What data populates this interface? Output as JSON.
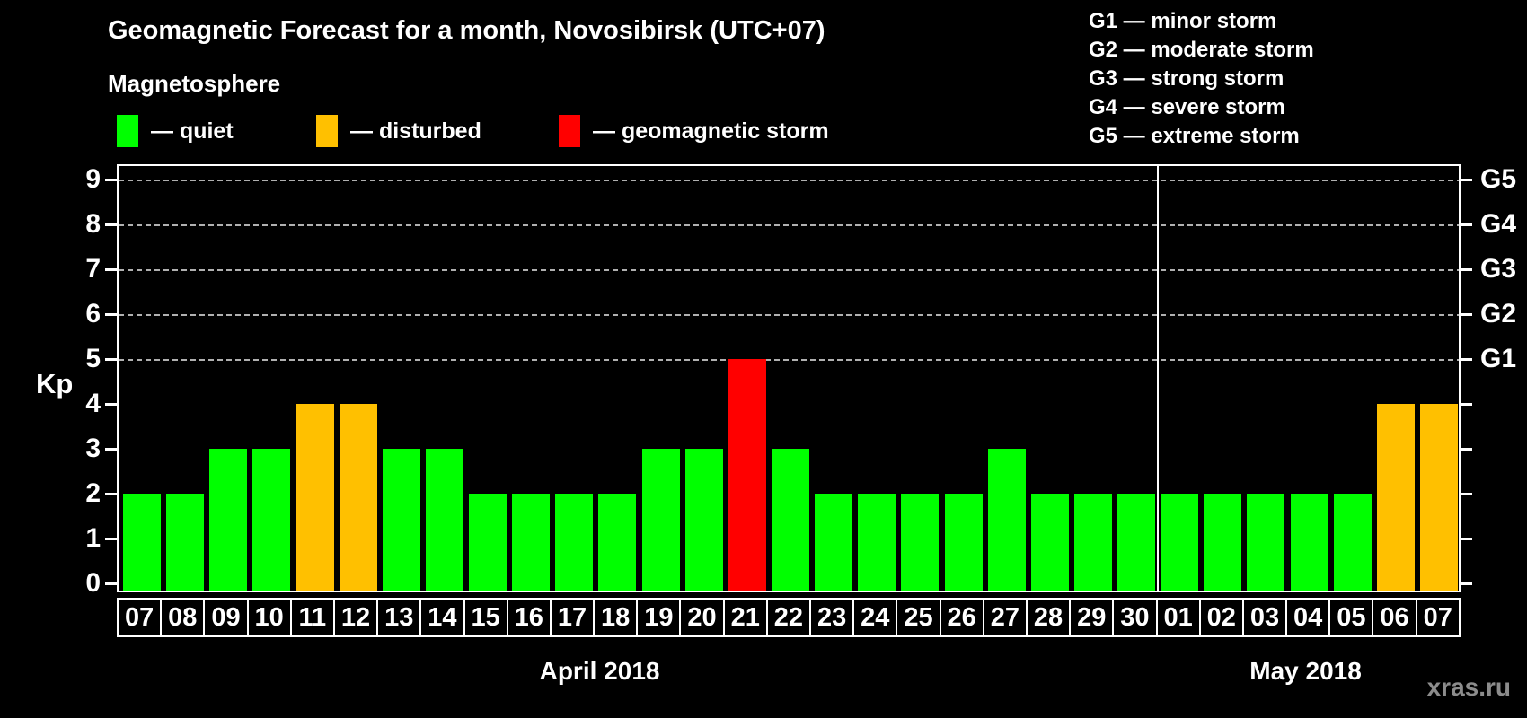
{
  "title": "Geomagnetic Forecast for a month, Novosibirsk (UTC+07)",
  "subtitle": "Magnetosphere",
  "legend": {
    "items": [
      {
        "key": "quiet",
        "label": "— quiet",
        "color": "#00ff00"
      },
      {
        "key": "disturbed",
        "label": "— disturbed",
        "color": "#ffc000"
      },
      {
        "key": "storm",
        "label": "— geomagnetic storm",
        "color": "#ff0000"
      }
    ]
  },
  "g_legend": [
    "G1 — minor storm",
    "G2 — moderate storm",
    "G3 — strong storm",
    "G4 — severe storm",
    "G5 — extreme storm"
  ],
  "watermark": "xras.ru",
  "chart_data": {
    "type": "bar",
    "title": "Geomagnetic Forecast for a month, Novosibirsk (UTC+07)",
    "ylabel": "Kp",
    "ylim": [
      0,
      9
    ],
    "yticks": [
      0,
      1,
      2,
      3,
      4,
      5,
      6,
      7,
      8,
      9
    ],
    "gridlines_at": [
      5,
      6,
      7,
      8,
      9
    ],
    "grid": "dashed horizontal at storm levels only",
    "right_axis_labels": [
      {
        "kp": 5,
        "label": "G1"
      },
      {
        "kp": 6,
        "label": "G2"
      },
      {
        "kp": 7,
        "label": "G3"
      },
      {
        "kp": 8,
        "label": "G4"
      },
      {
        "kp": 9,
        "label": "G5"
      }
    ],
    "months": [
      {
        "label": "April 2018",
        "days": 24
      },
      {
        "label": "May 2018",
        "days": 7
      }
    ],
    "categories": [
      "07",
      "08",
      "09",
      "10",
      "11",
      "12",
      "13",
      "14",
      "15",
      "16",
      "17",
      "18",
      "19",
      "20",
      "21",
      "22",
      "23",
      "24",
      "25",
      "26",
      "27",
      "28",
      "29",
      "30",
      "01",
      "02",
      "03",
      "04",
      "05",
      "06",
      "07"
    ],
    "values": [
      2,
      2,
      3,
      3,
      4,
      4,
      3,
      3,
      2,
      2,
      2,
      2,
      3,
      3,
      5,
      3,
      2,
      2,
      2,
      2,
      3,
      2,
      2,
      2,
      2,
      2,
      2,
      2,
      2,
      4,
      4
    ],
    "statuses": [
      "quiet",
      "quiet",
      "quiet",
      "quiet",
      "disturbed",
      "disturbed",
      "quiet",
      "quiet",
      "quiet",
      "quiet",
      "quiet",
      "quiet",
      "quiet",
      "quiet",
      "storm",
      "quiet",
      "quiet",
      "quiet",
      "quiet",
      "quiet",
      "quiet",
      "quiet",
      "quiet",
      "quiet",
      "quiet",
      "quiet",
      "quiet",
      "quiet",
      "quiet",
      "disturbed",
      "disturbed"
    ],
    "colors": {
      "quiet": "#00ff00",
      "disturbed": "#ffc000",
      "storm": "#ff0000"
    },
    "legend_position": "top-left and top-right"
  }
}
